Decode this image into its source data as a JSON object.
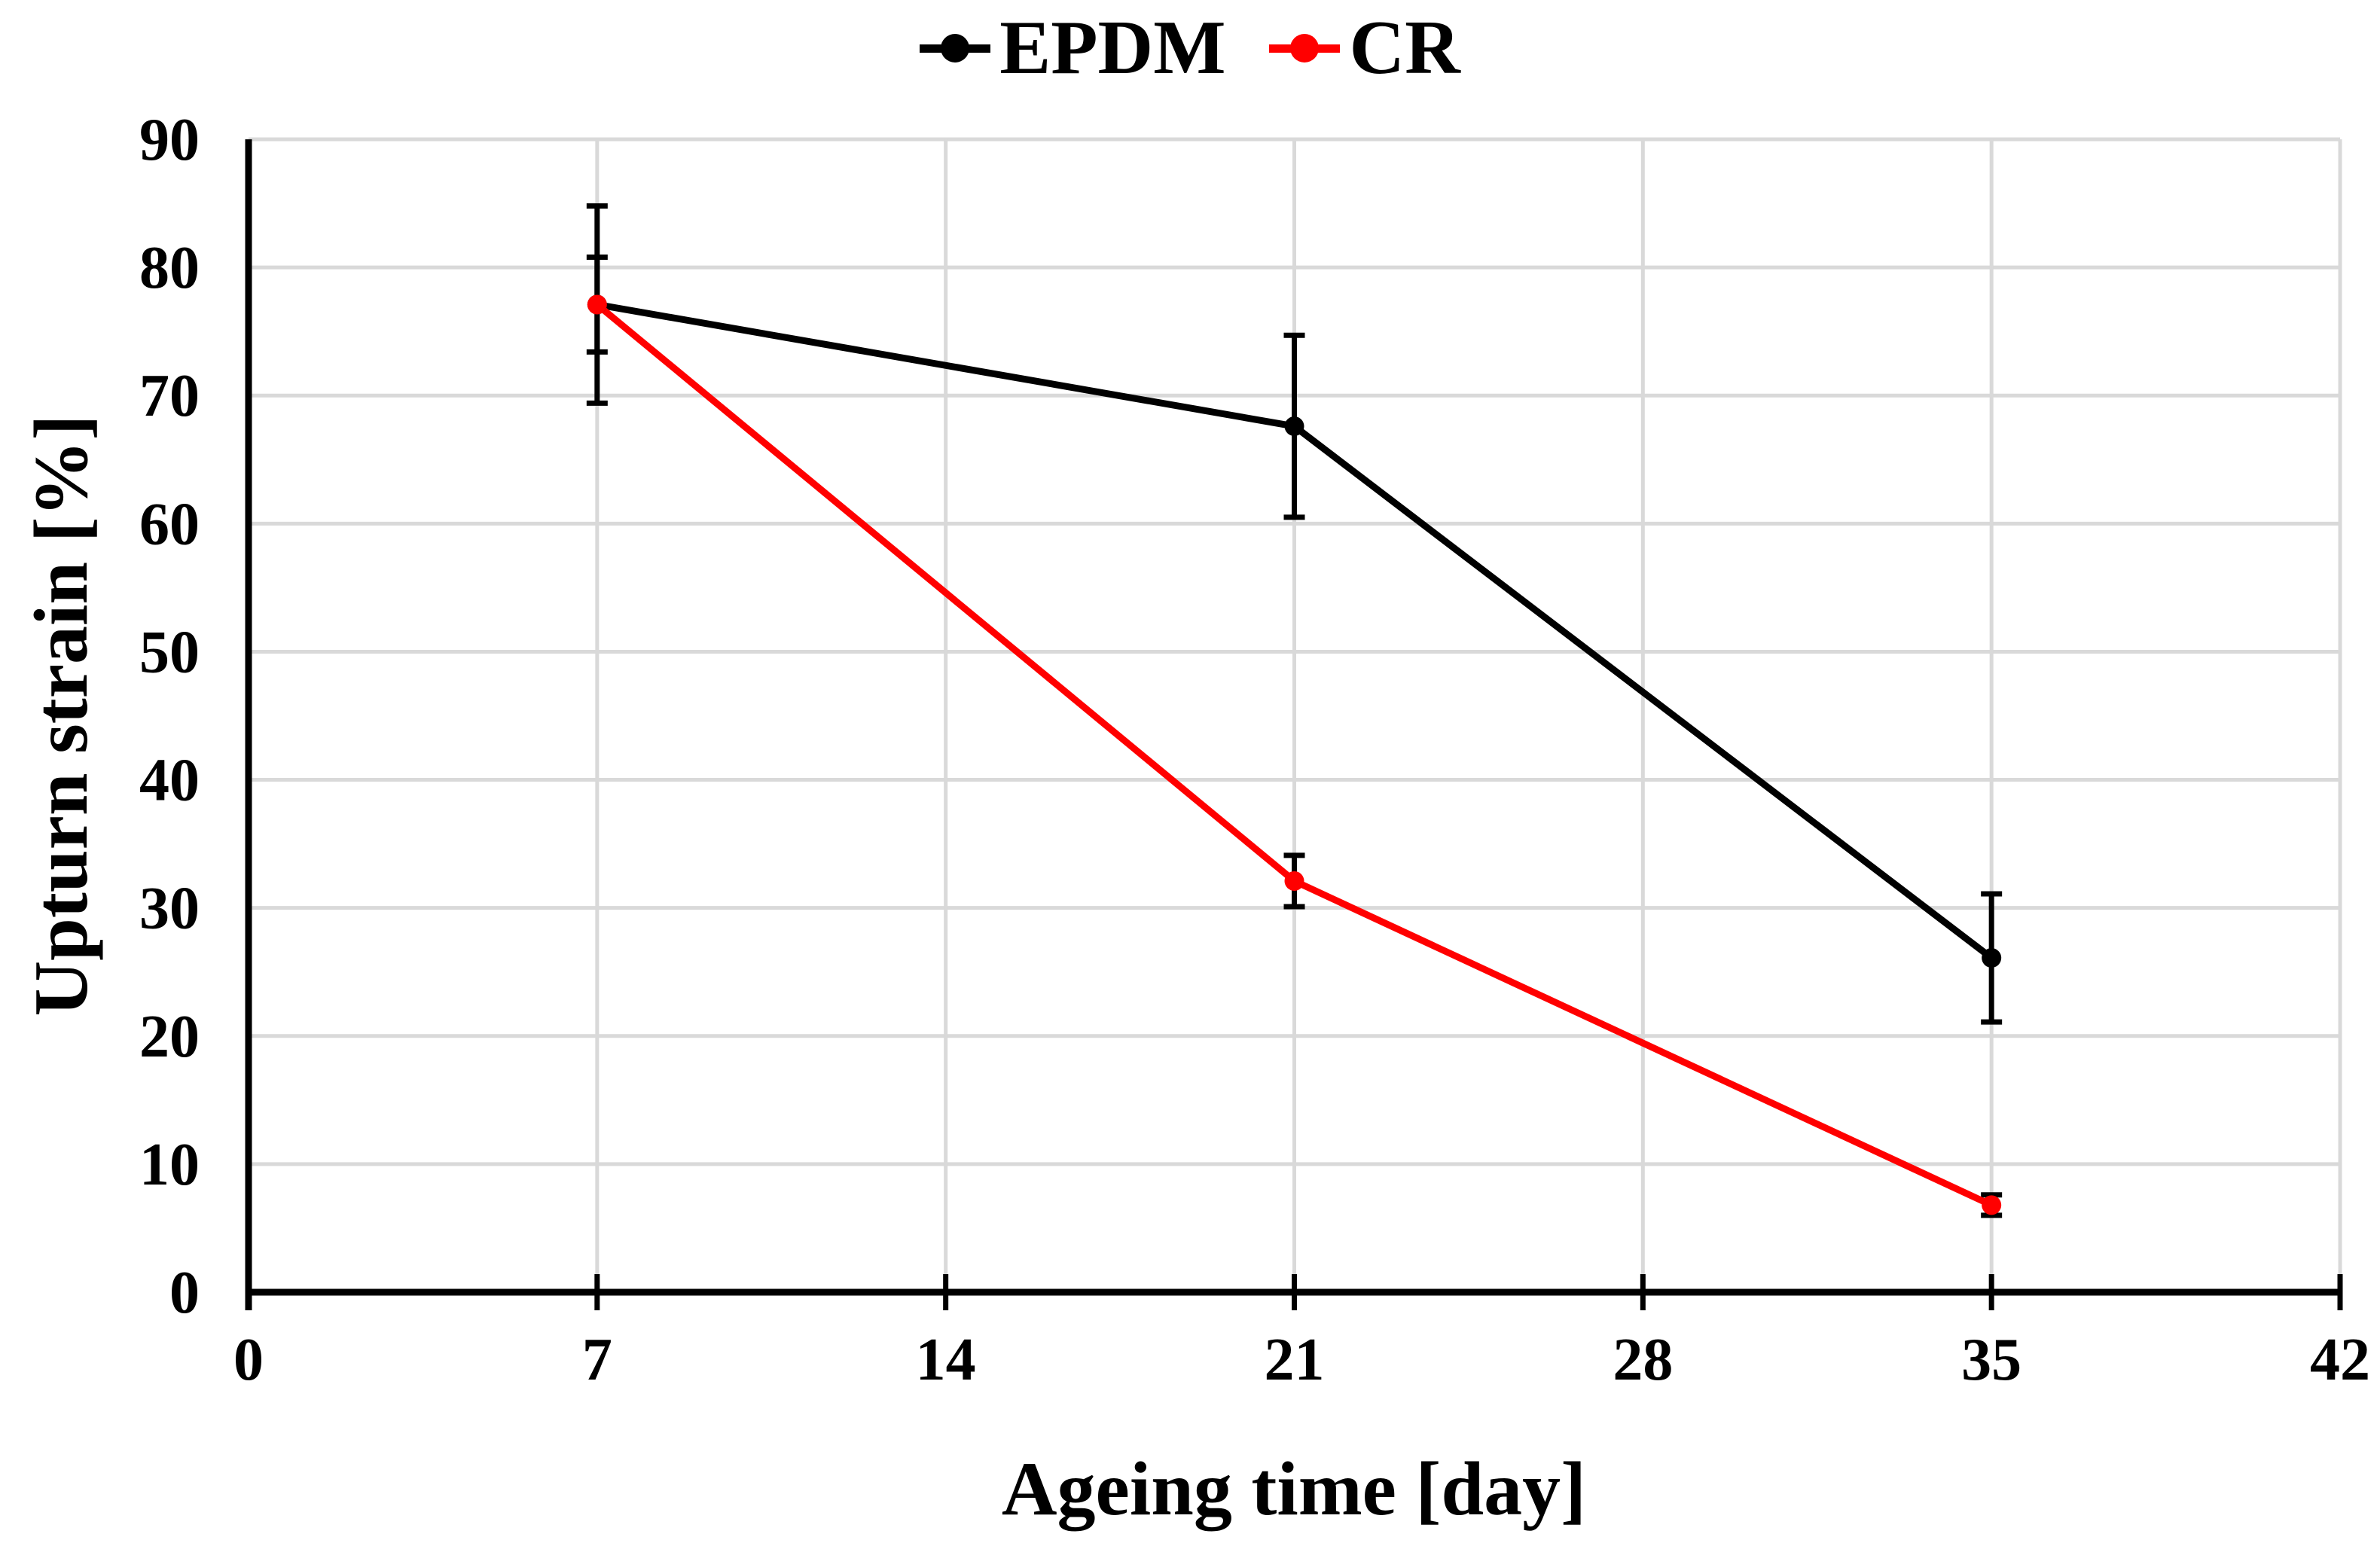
{
  "chart_data": {
    "type": "line",
    "title": "",
    "xlabel": "Ageing time [day]",
    "ylabel": "Upturn strain [%]",
    "x": [
      7,
      21,
      35
    ],
    "x_ticks": [
      0,
      7,
      14,
      21,
      28,
      35,
      42
    ],
    "y_ticks": [
      0,
      10,
      20,
      30,
      40,
      50,
      60,
      70,
      80,
      90
    ],
    "xlim": [
      0,
      42
    ],
    "ylim": [
      0,
      90
    ],
    "grid": true,
    "gridline_color": "#D9D9D9",
    "axis_color": "#000000",
    "error_bar_color": "#000000",
    "background_color": "#FFFFFF",
    "legend_position": "top-center",
    "marker": "circle",
    "series": [
      {
        "name": "EPDM",
        "color": "#000000",
        "values": [
          77.1,
          67.6,
          26.1
        ],
        "errors": [
          7.7,
          7.1,
          5.0
        ]
      },
      {
        "name": "CR",
        "color": "#FF0000",
        "values": [
          77.1,
          32.1,
          6.8
        ],
        "errors": [
          3.7,
          2.0,
          0.8
        ]
      }
    ]
  }
}
